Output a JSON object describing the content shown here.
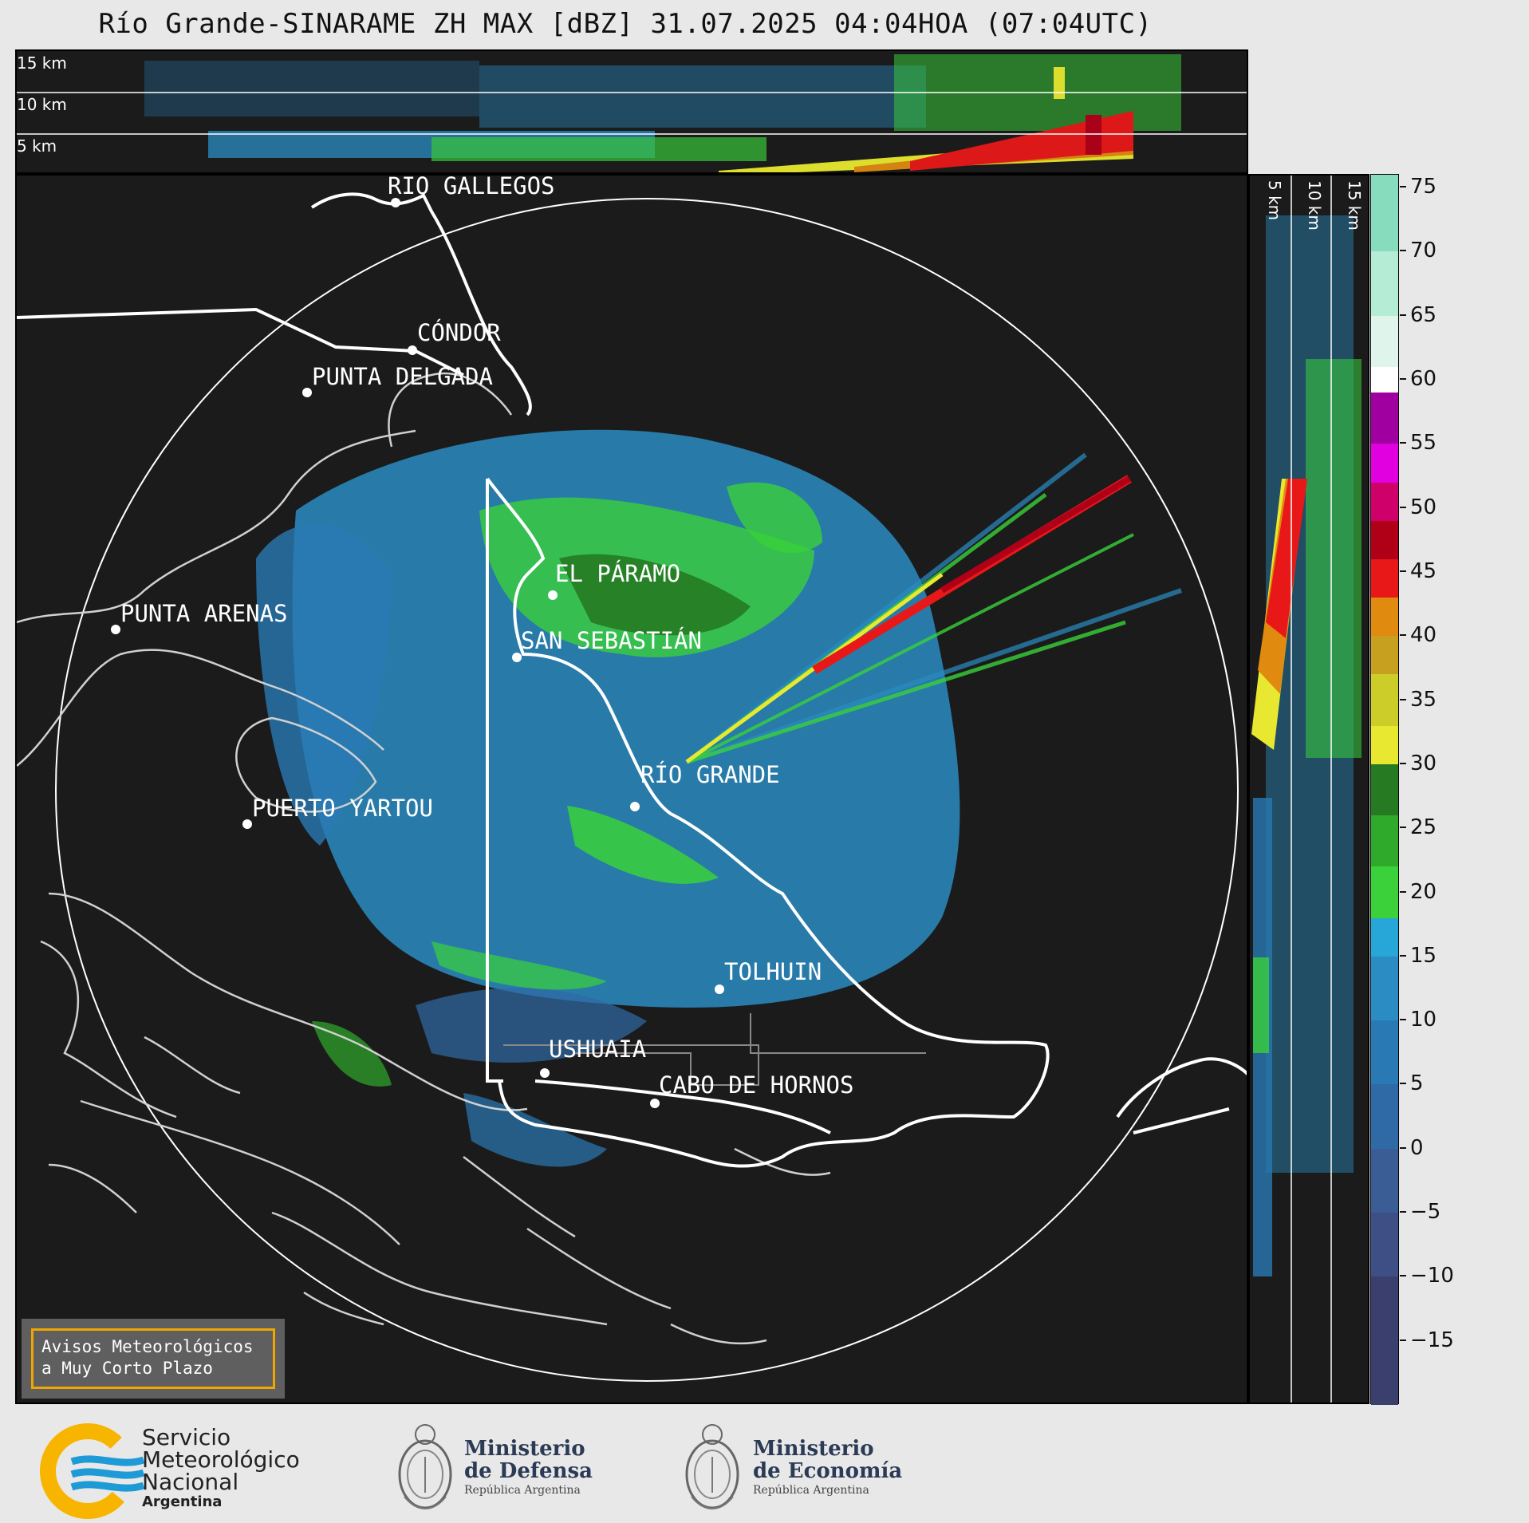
{
  "title": "Río Grande-SINARAME ZH MAX [dBZ] 31.07.2025 04:04HOA (07:04UTC)",
  "top_profile": {
    "heights": [
      "15 km",
      "10 km",
      "5 km"
    ]
  },
  "side_profile": {
    "heights": [
      "5 km",
      "10 km",
      "15 km"
    ]
  },
  "cities": [
    {
      "name": "RÍO GALLEGOS"
    },
    {
      "name": "CÓNDOR"
    },
    {
      "name": "PUNTA DELGADA"
    },
    {
      "name": "EL PÁRAMO"
    },
    {
      "name": "SAN SEBASTIÁN"
    },
    {
      "name": "PUNTA ARENAS"
    },
    {
      "name": "RÍO GRANDE"
    },
    {
      "name": "PUERTO YARTOU"
    },
    {
      "name": "TOLHUIN"
    },
    {
      "name": "USHUAIA"
    },
    {
      "name": "CABO DE HORNOS"
    }
  ],
  "colorbar": {
    "unit": "dBZ",
    "ticks": [
      "75",
      "70",
      "65",
      "60",
      "55",
      "50",
      "45",
      "40",
      "35",
      "30",
      "25",
      "20",
      "15",
      "10",
      "5",
      "0",
      "−5",
      "−10",
      "−15"
    ],
    "tick_values": [
      75,
      70,
      65,
      60,
      55,
      50,
      45,
      40,
      35,
      30,
      25,
      20,
      15,
      10,
      5,
      0,
      -5,
      -10,
      -15
    ],
    "range": [
      -20,
      76
    ],
    "stops": [
      {
        "from": -20,
        "to": -10,
        "color": "#3b3f6e"
      },
      {
        "from": -10,
        "to": -5,
        "color": "#3e4f86"
      },
      {
        "from": -5,
        "to": 0,
        "color": "#3a5d96"
      },
      {
        "from": 0,
        "to": 5,
        "color": "#2f6aa6"
      },
      {
        "from": 5,
        "to": 10,
        "color": "#2979b4"
      },
      {
        "from": 10,
        "to": 15,
        "color": "#2a8cc2"
      },
      {
        "from": 15,
        "to": 18,
        "color": "#27a7d8"
      },
      {
        "from": 18,
        "to": 22,
        "color": "#3ad13a"
      },
      {
        "from": 22,
        "to": 26,
        "color": "#2faa2a"
      },
      {
        "from": 26,
        "to": 30,
        "color": "#267a22"
      },
      {
        "from": 30,
        "to": 33,
        "color": "#e8e830"
      },
      {
        "from": 33,
        "to": 37,
        "color": "#cdcd2a"
      },
      {
        "from": 37,
        "to": 40,
        "color": "#c8a020"
      },
      {
        "from": 40,
        "to": 43,
        "color": "#e08a10"
      },
      {
        "from": 43,
        "to": 46,
        "color": "#e81818"
      },
      {
        "from": 46,
        "to": 49,
        "color": "#b00018"
      },
      {
        "from": 49,
        "to": 52,
        "color": "#d0006a"
      },
      {
        "from": 52,
        "to": 55,
        "color": "#e000e0"
      },
      {
        "from": 55,
        "to": 59,
        "color": "#a000a0"
      },
      {
        "from": 59,
        "to": 61,
        "color": "#ffffff"
      },
      {
        "from": 61,
        "to": 65,
        "color": "#dff5ec"
      },
      {
        "from": 65,
        "to": 70,
        "color": "#b4ecd6"
      },
      {
        "from": 70,
        "to": 76,
        "color": "#86dcbd"
      }
    ]
  },
  "aviso": {
    "line1": "Avisos Meteorológicos",
    "line2": "a Muy Corto Plazo"
  },
  "logos": {
    "smn": {
      "line1": "Servicio",
      "line2": "Meteorológico",
      "line3": "Nacional",
      "line4": "Argentina"
    },
    "defensa": {
      "line1": "Ministerio",
      "line2": "de Defensa",
      "line3": "República Argentina"
    },
    "economia": {
      "line1": "Ministerio",
      "line2": "de Economía",
      "line3": "República Argentina"
    }
  },
  "colors": {
    "panel_bg": "#1b1b1b",
    "accent_orange": "#f0a500",
    "smn_blue": "#1e9bd7",
    "smn_yellow": "#f7b500"
  }
}
